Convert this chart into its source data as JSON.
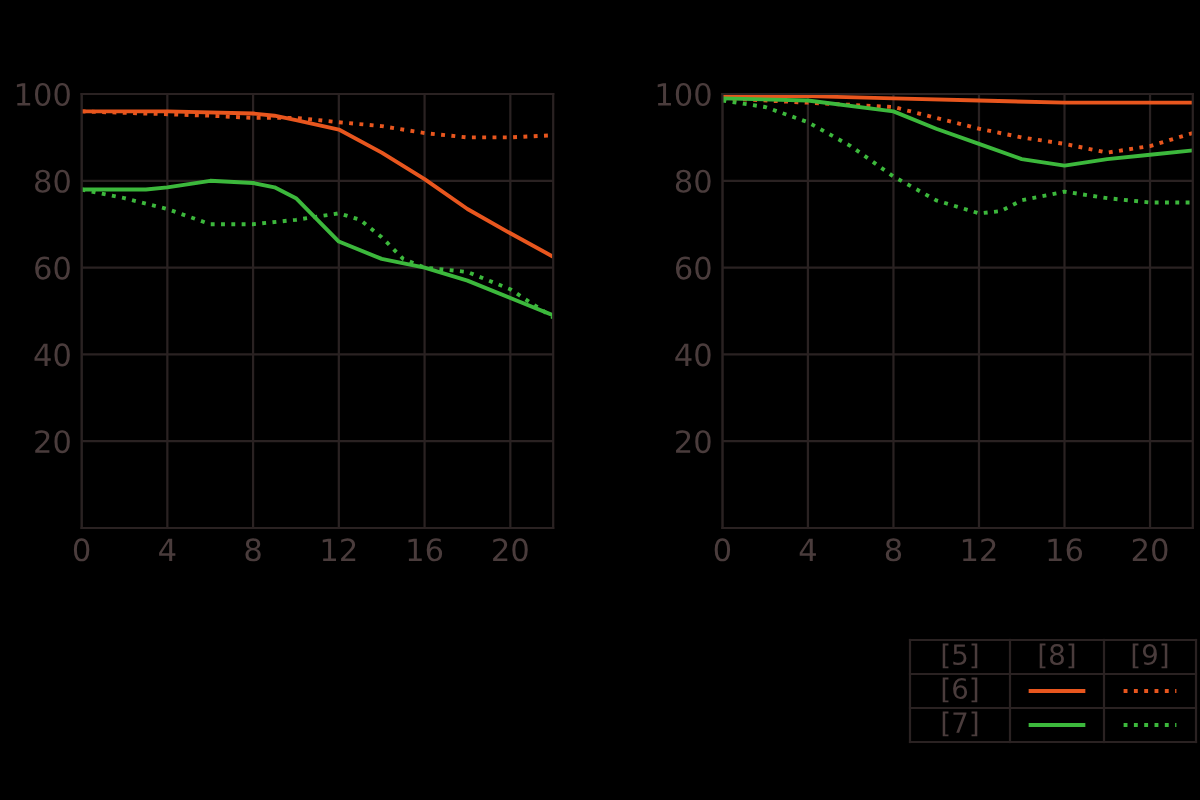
{
  "chart_data": [
    {
      "type": "line",
      "xlim": [
        0,
        22
      ],
      "ylim": [
        0,
        100
      ],
      "xticks": [
        0,
        4,
        8,
        12,
        16,
        20
      ],
      "yticks": [
        20,
        40,
        60,
        80,
        100
      ],
      "grid": true,
      "series": [
        {
          "color": "#e8561e",
          "line_style": "solid",
          "x": [
            0,
            4,
            8,
            9,
            10,
            12,
            14,
            16,
            18,
            20,
            22
          ],
          "values": [
            96,
            96,
            95.5,
            95,
            94,
            91.8,
            86.5,
            80.4,
            73.5,
            67.9,
            62.5
          ]
        },
        {
          "color": "#e8561e",
          "line_style": "dotted",
          "x": [
            0,
            3,
            6,
            8,
            10,
            12,
            14,
            16,
            18,
            20,
            22
          ],
          "values": [
            96,
            95.5,
            95,
            94.5,
            94.5,
            93.5,
            92.6,
            91,
            90,
            90,
            90.5
          ]
        },
        {
          "color": "#3cb83c",
          "line_style": "solid",
          "x": [
            0,
            3,
            4,
            6,
            8,
            9,
            10,
            11,
            12,
            14,
            16,
            18,
            20,
            22
          ],
          "values": [
            78,
            78,
            78.5,
            80,
            79.5,
            78.5,
            76,
            71,
            66,
            62,
            60,
            57,
            53,
            49
          ]
        },
        {
          "color": "#3cb83c",
          "line_style": "dotted",
          "x": [
            0,
            2,
            4,
            6,
            8,
            10,
            12,
            13,
            14,
            15,
            16,
            18,
            20,
            22
          ],
          "values": [
            78,
            76,
            73.5,
            70,
            70,
            71,
            72.5,
            71,
            67,
            62,
            60,
            59,
            55,
            48.5
          ]
        }
      ]
    },
    {
      "type": "line",
      "xlim": [
        0,
        22
      ],
      "ylim": [
        0,
        100
      ],
      "xticks": [
        0,
        4,
        8,
        12,
        16,
        20
      ],
      "yticks": [
        20,
        40,
        60,
        80,
        100
      ],
      "grid": true,
      "annotations": [
        "[5]",
        "[6]",
        "[7]",
        "[8]",
        "[9]"
      ],
      "series": [
        {
          "color": "#e8561e",
          "line_style": "solid",
          "x": [
            0,
            4,
            8,
            12,
            16,
            20,
            22
          ],
          "values": [
            99.5,
            99.5,
            99,
            98.5,
            98,
            98,
            98
          ]
        },
        {
          "color": "#e8561e",
          "line_style": "dotted",
          "x": [
            0,
            4,
            8,
            10,
            12,
            14,
            16,
            18,
            20,
            22
          ],
          "values": [
            99,
            98,
            97,
            94.5,
            92,
            90,
            88.5,
            86.5,
            88,
            91
          ]
        },
        {
          "color": "#3cb83c",
          "line_style": "solid",
          "x": [
            0,
            4,
            8,
            10,
            12,
            14,
            16,
            18,
            20,
            22
          ],
          "values": [
            99,
            98.5,
            96,
            92,
            88.5,
            85,
            83.5,
            85,
            86,
            87
          ]
        },
        {
          "color": "#3cb83c",
          "line_style": "dotted",
          "x": [
            0,
            2,
            4,
            6,
            8,
            10,
            12,
            13,
            14,
            16,
            18,
            20,
            22
          ],
          "values": [
            98.5,
            97,
            93.5,
            88,
            81,
            75.5,
            72.5,
            73,
            75.5,
            77.5,
            76,
            75,
            75
          ]
        }
      ]
    }
  ]
}
